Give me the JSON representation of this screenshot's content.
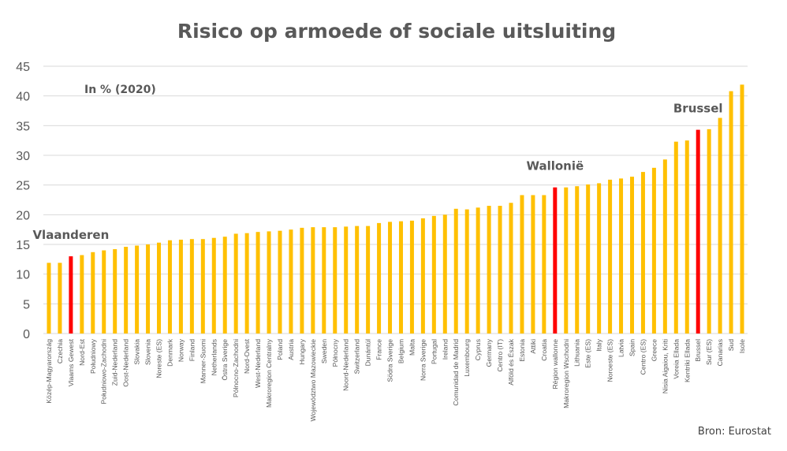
{
  "chart_data": {
    "type": "bar",
    "title": "Risico op armoede of sociale uitsluiting",
    "subtitle": "In % (2020)",
    "source": "Bron: Eurostat",
    "xlabel": "",
    "ylabel": "",
    "ylim": [
      0,
      45
    ],
    "yticks": [
      0,
      5,
      10,
      15,
      20,
      25,
      30,
      35,
      40,
      45
    ],
    "grid": true,
    "colors": {
      "default": "#FFC000",
      "highlight": "#FF0000",
      "text": "#595959",
      "grid": "#D9D9D9"
    },
    "annotations": [
      {
        "text": "Vlaanderen",
        "category": "Vlaams Gewest"
      },
      {
        "text": "Wallonië",
        "category": "Région wallonne"
      },
      {
        "text": "Brussel",
        "category": "Brussel"
      }
    ],
    "highlighted": [
      "Vlaams Gewest",
      "Région wallonne",
      "Brussel"
    ],
    "categories": [
      "Közép-Magyarország",
      "Czechia",
      "Vlaams Gewest",
      "Nord-Est",
      "Południowy",
      "Południowo-Zachodni",
      "Zuid-Nederland",
      "Oost-Nederland",
      "Slovakia",
      "Slovenia",
      "Noreste (ES)",
      "Denmark",
      "Norway",
      "Finland",
      "Manner-Suomi",
      "Netherlands",
      "Östra Sverige",
      "Północno-Zachodni",
      "Nord-Ovest",
      "West-Nederland",
      "Makroregion Centralny",
      "Poland",
      "Austria",
      "Hungary",
      "Województwo Mazowieckie",
      "Sweden",
      "Północny",
      "Noord-Nederland",
      "Switzerland",
      "Dunántúl",
      "France",
      "Södra Sverige",
      "Belgium",
      "Malta",
      "Norra Sverige",
      "Portugal",
      "Ireland",
      "Comunidad de Madrid",
      "Luxembourg",
      "Cyprus",
      "Germany",
      "Centro (IT)",
      "Alföld és Észak",
      "Estonia",
      "Attiki",
      "Croatia",
      "Région wallonne",
      "Makroregion Wschodni",
      "Lithuania",
      "Este (ES)",
      "Italy",
      "Noroeste (ES)",
      "Latvia",
      "Spain",
      "Centro (ES)",
      "Greece",
      "Nisia Aigaiou, Kriti",
      "Voreia Ellada",
      "Kentriki Ellada",
      "Brussel",
      "Sur (ES)",
      "Canarias",
      "Sud",
      "Isole"
    ],
    "values": [
      11.9,
      11.9,
      13.0,
      13.2,
      13.7,
      14.0,
      14.2,
      14.6,
      14.8,
      15.0,
      15.3,
      15.7,
      15.8,
      15.9,
      15.9,
      16.1,
      16.3,
      16.8,
      16.9,
      17.1,
      17.2,
      17.3,
      17.5,
      17.8,
      17.9,
      17.9,
      17.9,
      18.0,
      18.1,
      18.1,
      18.6,
      18.8,
      18.9,
      19.0,
      19.4,
      19.8,
      20.0,
      21.0,
      20.9,
      21.2,
      21.5,
      21.5,
      22.0,
      23.3,
      23.3,
      23.3,
      24.6,
      24.6,
      24.8,
      25.1,
      25.3,
      25.9,
      26.1,
      26.4,
      27.2,
      27.9,
      29.3,
      32.3,
      32.5,
      34.3,
      34.4,
      36.3,
      40.8,
      41.9
    ]
  }
}
